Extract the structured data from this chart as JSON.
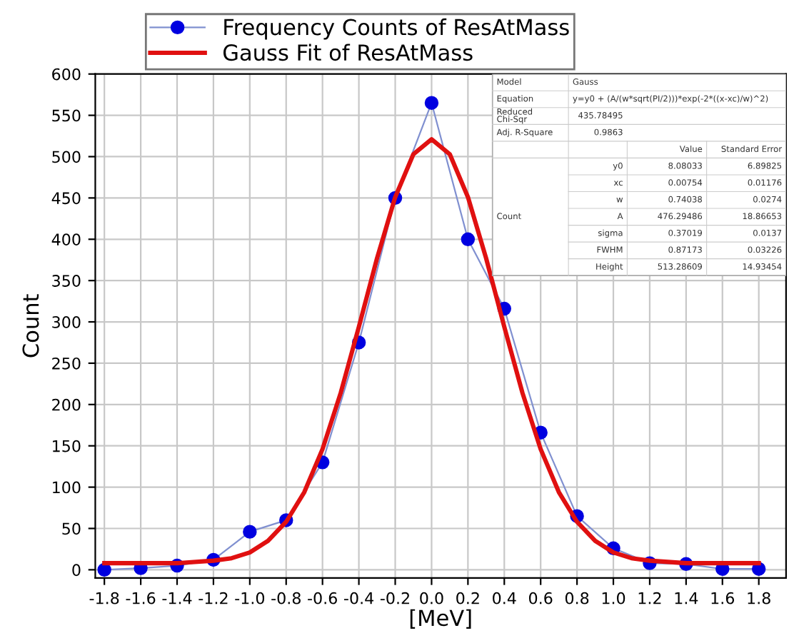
{
  "chart_data": {
    "type": "line",
    "xlabel": "[MeV]",
    "ylabel": "Count",
    "xlim": [
      -1.85,
      1.95
    ],
    "ylim": [
      -10,
      600
    ],
    "xticks": [
      {
        "value": -1.8,
        "label": "-1.8"
      },
      {
        "value": -1.6,
        "label": "-1.6"
      },
      {
        "value": -1.4,
        "label": "-1.4"
      },
      {
        "value": -1.2,
        "label": "-1.2"
      },
      {
        "value": -1.0,
        "label": "-1.0"
      },
      {
        "value": -0.8,
        "label": "-0.8"
      },
      {
        "value": -0.6,
        "label": "-0.6"
      },
      {
        "value": -0.4,
        "label": "-0.4"
      },
      {
        "value": -0.2,
        "label": "-0.2"
      },
      {
        "value": 0,
        "label": "0.0"
      },
      {
        "value": 0.2,
        "label": "0.2"
      },
      {
        "value": 0.4,
        "label": "0.4"
      },
      {
        "value": 0.6,
        "label": "0.6"
      },
      {
        "value": 0.8,
        "label": "0.8"
      },
      {
        "value": 1.0,
        "label": "1.0"
      },
      {
        "value": 1.2,
        "label": "1.2"
      },
      {
        "value": 1.4,
        "label": "1.4"
      },
      {
        "value": 1.6,
        "label": "1.6"
      },
      {
        "value": 1.8,
        "label": "1.8"
      }
    ],
    "yticks": [
      0,
      50,
      100,
      150,
      200,
      250,
      300,
      350,
      400,
      450,
      500,
      550,
      600
    ],
    "grid": true,
    "legend": "top left",
    "series": [
      {
        "name": "Frequency Counts of ResAtMass",
        "color": "#0000e0",
        "marker": "circle",
        "x": [
          -1.8,
          -1.6,
          -1.4,
          -1.2,
          -1.0,
          -0.8,
          -0.6,
          -0.4,
          -0.2,
          0,
          0.2,
          0.4,
          0.6,
          0.8,
          1.0,
          1.2,
          1.4,
          1.6,
          1.8
        ],
        "values": [
          0,
          2,
          5,
          12,
          46,
          60,
          130,
          275,
          450,
          565,
          400,
          316,
          166,
          65,
          26,
          8,
          7,
          1,
          1
        ]
      },
      {
        "name": "Gauss Fit of ResAtMass",
        "color": "#e01010",
        "marker": "none",
        "x": [
          -1.8,
          -1.4,
          -1.2,
          -1.1,
          -1.0,
          -0.9,
          -0.8,
          -0.7,
          -0.6,
          -0.5,
          -0.4,
          -0.3,
          -0.2,
          -0.1,
          0,
          0.1,
          0.2,
          0.3,
          0.4,
          0.5,
          0.6,
          0.7,
          0.8,
          0.9,
          1.0,
          1.1,
          1.2,
          1.4,
          1.8
        ],
        "values": [
          8,
          8,
          11,
          14,
          21,
          35,
          58,
          94,
          146,
          214,
          294,
          377,
          451,
          503,
          521,
          503,
          451,
          377,
          294,
          214,
          146,
          94,
          58,
          35,
          21,
          14,
          11,
          8,
          8
        ]
      }
    ],
    "annotations": [
      "Model",
      "Gauss",
      "Equation",
      "y=y0 + (A/(w*sqrt(PI/2)))*exp(-2*((x-xc)/w)^2)",
      "Reduced\nChi-Sqr",
      "435.78495",
      "Adj. R-Square",
      "0.9863",
      "Value",
      "Standard Error",
      "Count",
      "y0",
      "8.08033",
      "6.89825",
      "xc",
      "0.00754",
      "0.01176",
      "w",
      "0.74038",
      "0.0274",
      "A",
      "476.29486",
      "18.86653",
      "sigma",
      "0.37019",
      "0.0137",
      "FWHM",
      "0.87173",
      "0.03226",
      "Height",
      "513.28609",
      "14.93454"
    ]
  }
}
